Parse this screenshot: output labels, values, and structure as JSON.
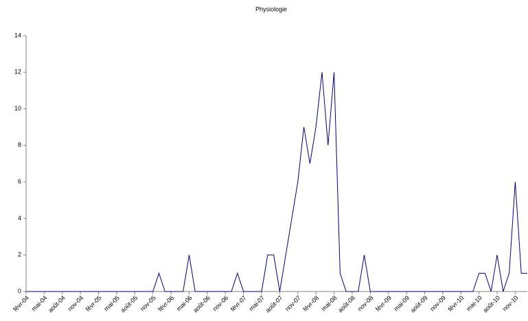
{
  "chart_data": {
    "type": "line",
    "title": "Physiologie",
    "categories": [
      "févr-04",
      null,
      null,
      "mai-04",
      null,
      null,
      "août-04",
      null,
      null,
      "nov-04",
      null,
      null,
      "févr-05",
      null,
      null,
      "mai-05",
      null,
      null,
      "août-05",
      null,
      null,
      "nov-05",
      null,
      null,
      "févr-06",
      null,
      null,
      "mai-06",
      null,
      null,
      "août-06",
      null,
      null,
      "nov-06",
      null,
      null,
      "févr-07",
      null,
      null,
      "mai-07",
      null,
      null,
      "août-07",
      null,
      null,
      "nov-07",
      null,
      null,
      "févr-08",
      null,
      null,
      "mai-08",
      null,
      null,
      "août-08",
      null,
      null,
      "nov-08",
      null,
      null,
      "févr-09",
      null,
      null,
      "mai-09",
      null,
      null,
      "août-09",
      null,
      null,
      "nov-09",
      null,
      null,
      "févr-10",
      null,
      null,
      "mai-10",
      null,
      null,
      "août-10",
      null,
      null,
      "nov-10",
      null,
      null
    ],
    "series": [
      {
        "name": "Physiologie",
        "color": "#000080",
        "values": [
          0,
          0,
          0,
          0,
          0,
          0,
          0,
          0,
          0,
          0,
          0,
          0,
          0,
          0,
          0,
          0,
          0,
          0,
          0,
          0,
          0,
          0,
          1,
          0,
          0,
          0,
          0,
          2,
          0,
          0,
          0,
          0,
          0,
          0,
          0,
          1,
          0,
          0,
          0,
          0,
          2,
          2,
          0,
          2,
          4,
          6,
          9,
          7,
          9,
          12,
          8,
          12,
          1,
          0,
          0,
          0,
          2,
          0,
          0,
          0,
          0,
          0,
          0,
          0,
          0,
          0,
          0,
          0,
          0,
          0,
          0,
          0,
          0,
          0,
          0,
          1,
          1,
          0,
          2,
          0,
          1,
          6,
          1,
          1
        ]
      }
    ],
    "ylim": [
      0,
      14
    ],
    "yticks": [
      0,
      2,
      4,
      6,
      8,
      10,
      12,
      14
    ],
    "grid": false
  }
}
